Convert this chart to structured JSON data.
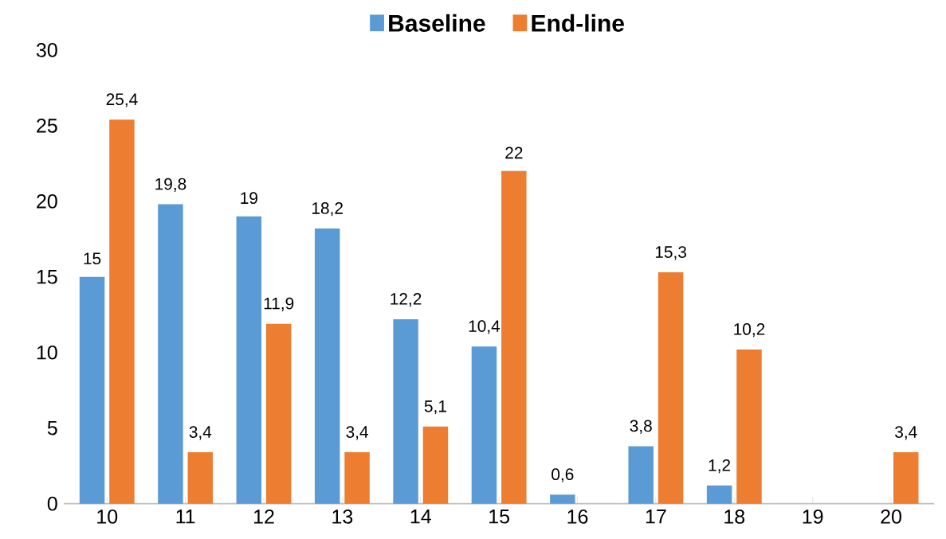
{
  "chart_data": {
    "type": "bar",
    "categories": [
      "10",
      "11",
      "12",
      "13",
      "14",
      "15",
      "16",
      "17",
      "18",
      "19",
      "20"
    ],
    "series": [
      {
        "name": "Baseline",
        "color": "#5b9bd5",
        "values": [
          15,
          19.8,
          19,
          18.2,
          12.2,
          10.4,
          0.6,
          3.8,
          1.2,
          null,
          null
        ],
        "value_labels": [
          "15",
          "19,8",
          "19",
          "18,2",
          "12,2",
          "10,4",
          "0,6",
          "3,8",
          "1,2",
          null,
          null
        ]
      },
      {
        "name": "End-line",
        "color": "#ed7d31",
        "values": [
          25.4,
          3.4,
          11.9,
          3.4,
          5.1,
          22,
          null,
          15.3,
          10.2,
          null,
          3.4
        ],
        "value_labels": [
          "25,4",
          "3,4",
          "11,9",
          "3,4",
          "5,1",
          "22",
          null,
          "15,3",
          "10,2",
          null,
          "3,4"
        ]
      }
    ],
    "ylim": [
      0,
      30
    ],
    "yticks": [
      0,
      5,
      10,
      15,
      20,
      25,
      30
    ],
    "grid": false,
    "legend": "top"
  }
}
